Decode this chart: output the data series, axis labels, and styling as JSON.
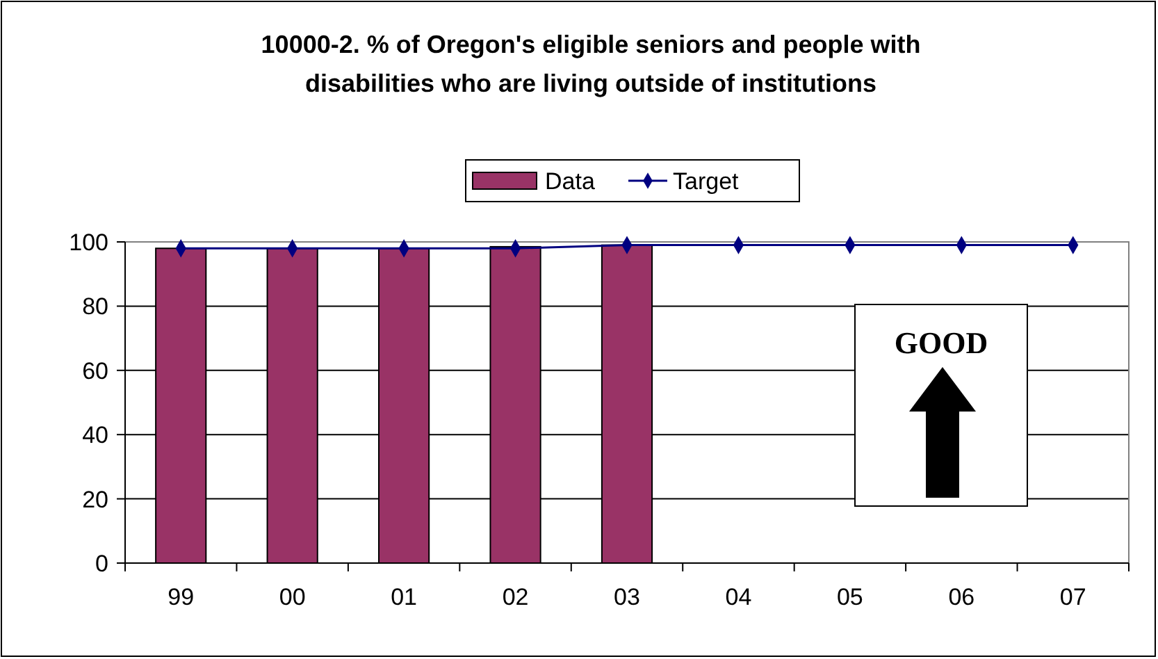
{
  "chart_data": {
    "type": "bar",
    "title": "10000-2. % of Oregon's eligible seniors and people with disabilities who are living outside of institutions",
    "categories": [
      "99",
      "00",
      "01",
      "02",
      "03",
      "04",
      "05",
      "06",
      "07"
    ],
    "series": [
      {
        "name": "Data",
        "color": "#993366",
        "values": [
          98,
          98,
          98,
          98.5,
          99,
          null,
          null,
          null,
          null
        ]
      },
      {
        "name": "Target",
        "type": "line",
        "color": "#000080",
        "marker": "diamond",
        "values": [
          98,
          98,
          98,
          98,
          99,
          99,
          99,
          99,
          99
        ]
      }
    ],
    "ylim": [
      0,
      100
    ],
    "yticks": [
      0,
      20,
      40,
      60,
      80,
      100
    ],
    "grid": "y",
    "legend": "top",
    "annotations": [
      "GOOD"
    ]
  }
}
